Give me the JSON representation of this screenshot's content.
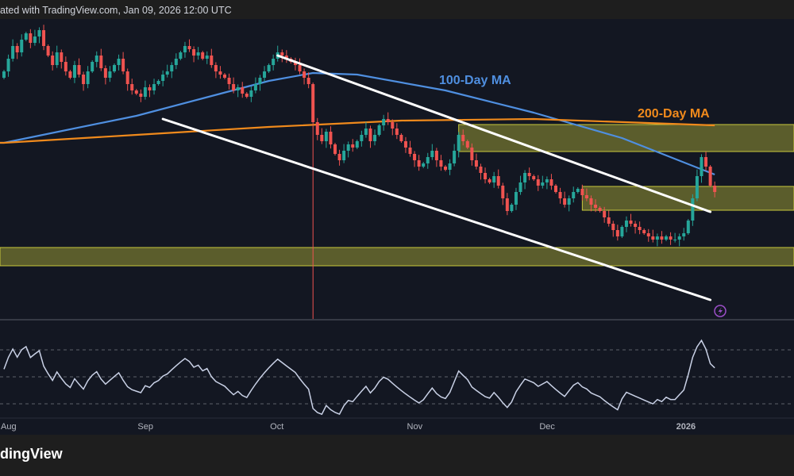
{
  "header": {
    "credit": "ated with TradingView.com, Jan 09, 2026 12:00 UTC"
  },
  "footer": {
    "logo_text": "dingView"
  },
  "colors": {
    "up": "#26a69a",
    "down": "#ef5350",
    "ma100": "#4f8fe0",
    "ma200": "#f08a1c",
    "zone": "#c8c83c",
    "trendline": "#ffffff",
    "rsi": "#c9d1e6",
    "alert": "#9c4fc9"
  },
  "chart_data": {
    "type": "candlestick",
    "title": "",
    "x_axis_labels": [
      "Aug",
      "Sep",
      "Oct",
      "Nov",
      "Dec",
      "2026"
    ],
    "x_axis_label_day_index": [
      0,
      31,
      61,
      92,
      122,
      153
    ],
    "start_date": "Aug 1",
    "end_date": "Jan 9",
    "price_units": "relative (no price axis shown)",
    "closes": [
      80,
      84,
      88,
      86,
      90,
      92,
      89,
      91,
      93,
      88,
      85,
      82,
      86,
      83,
      80,
      78,
      82,
      79,
      76,
      80,
      83,
      85,
      81,
      78,
      80,
      82,
      84,
      80,
      76,
      74,
      73,
      72,
      75,
      74,
      76,
      77,
      79,
      80,
      82,
      84,
      86,
      88,
      87,
      85,
      86,
      84,
      85,
      82,
      80,
      79,
      78,
      76,
      74,
      75,
      73,
      72,
      74,
      76,
      78,
      80,
      82,
      84,
      86,
      85,
      84,
      83,
      82,
      80,
      78,
      76,
      64,
      60,
      58,
      61,
      57,
      54,
      52,
      55,
      57,
      56,
      58,
      60,
      62,
      58,
      60,
      63,
      65,
      64,
      62,
      60,
      58,
      56,
      54,
      52,
      50,
      51,
      53,
      55,
      52,
      50,
      49,
      51,
      55,
      60,
      58,
      56,
      52,
      50,
      48,
      46,
      45,
      47,
      44,
      40,
      36,
      38,
      42,
      45,
      48,
      47,
      46,
      44,
      45,
      46,
      44,
      42,
      40,
      38,
      40,
      42,
      43,
      41,
      40,
      38,
      37,
      36,
      34,
      32,
      30,
      28,
      31,
      33,
      32,
      31,
      30,
      29,
      28,
      27,
      28,
      27,
      28,
      27,
      27,
      28,
      29,
      33,
      40,
      47,
      53,
      50,
      44,
      42
    ],
    "first_open": 78,
    "crash_wick_low_day_index": 70,
    "crash_wick_low": -2,
    "series": [
      {
        "name": "100-Day MA",
        "label": "100-Day MA",
        "day_index": [
          0,
          30,
          60,
          70,
          80,
          100,
          120,
          140,
          161
        ],
        "values": [
          57.5,
          66,
          77,
          79.5,
          79,
          74,
          67,
          59,
          47.5
        ]
      },
      {
        "name": "200-Day MA",
        "label": "200-Day MA",
        "day_index": [
          0,
          30,
          60,
          90,
          120,
          161
        ],
        "values": [
          57.5,
          60,
          62.5,
          64.5,
          65,
          63
        ]
      }
    ],
    "zones": [
      {
        "name": "upper-resistance-zone",
        "from_day_index": 103,
        "top": 63.25,
        "bottom": 54.75
      },
      {
        "name": "mid-zone",
        "from_day_index": 131,
        "top": 43.75,
        "bottom": 36.25
      },
      {
        "name": "support-zone",
        "from_day_index": -1,
        "top": 24.5,
        "bottom": 18.75
      }
    ],
    "trendlines": [
      {
        "name": "channel-upper",
        "from": [
          62,
          85
        ],
        "to": [
          160,
          35.75
        ]
      },
      {
        "name": "channel-lower",
        "from": [
          36,
          65
        ],
        "to": [
          160,
          8
        ]
      }
    ],
    "indicator": {
      "name": "RSI",
      "levels": [
        70,
        50,
        30
      ],
      "period": 14
    }
  }
}
